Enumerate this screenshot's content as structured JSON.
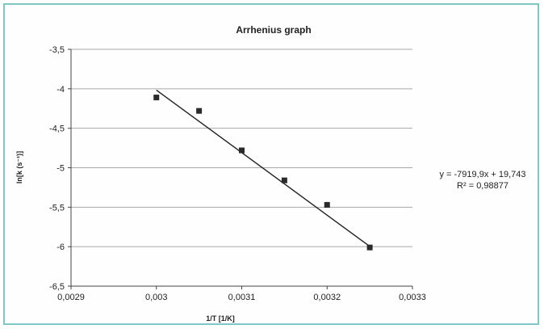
{
  "chart_data": {
    "type": "scatter",
    "title": "Arrhenius graph",
    "xlabel": "1/T [1/K]",
    "ylabel": "ln[k (s⁻¹)]",
    "xlim": [
      0.0029,
      0.0033
    ],
    "ylim": [
      -6.5,
      -3.5
    ],
    "x_ticks": [
      0.0029,
      0.003,
      0.0031,
      0.0032,
      0.0033
    ],
    "x_tick_labels": [
      "0,0029",
      "0,003",
      "0,0031",
      "0,0032",
      "0,0033"
    ],
    "y_ticks": [
      -3.5,
      -4,
      -4.5,
      -5,
      -5.5,
      -6,
      -6.5
    ],
    "y_tick_labels": [
      "-3,5",
      "-4",
      "-4,5",
      "-5",
      "-5,5",
      "-6",
      "-6,5"
    ],
    "grid": "horizontal",
    "series": [
      {
        "marker_color": "#2a2a2a",
        "points": [
          {
            "x": 0.003,
            "y": -4.11
          },
          {
            "x": 0.00305,
            "y": -4.28
          },
          {
            "x": 0.0031,
            "y": -4.78
          },
          {
            "x": 0.00315,
            "y": -5.16
          },
          {
            "x": 0.0032,
            "y": -5.47
          },
          {
            "x": 0.00325,
            "y": -6.01
          }
        ]
      }
    ],
    "trendline": {
      "slope": -7919.9,
      "intercept": 19.743,
      "x_range": [
        0.003,
        0.00325
      ],
      "color": "#222222"
    },
    "annotations": {
      "equation": "y = -7919,9x + 19,743",
      "r_squared": "R² = 0,98877"
    }
  }
}
